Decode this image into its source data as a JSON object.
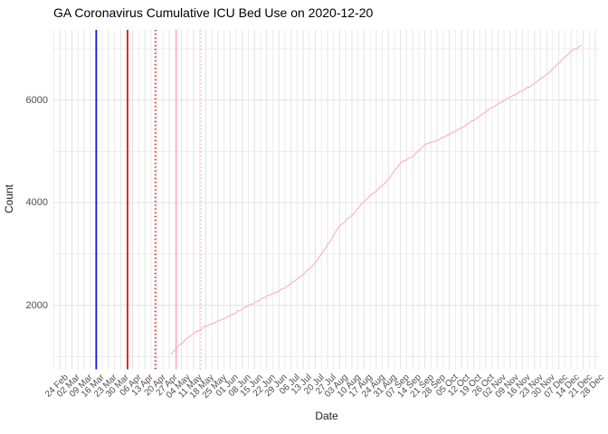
{
  "page": {
    "background": "#ffffff"
  },
  "chart_data": {
    "type": "line",
    "title": "GA Coronavirus Cumulative ICU Bed Use on 2020-12-20",
    "xlabel": "Date",
    "ylabel": "Count",
    "x_axis": {
      "start_date": "2020-02-24",
      "end_date": "2020-12-28",
      "tick_interval_days": 7,
      "tick_labels": [
        "24 Feb",
        "02 Mar",
        "09 Mar",
        "16 Mar",
        "23 Mar",
        "30 Mar",
        "06 Apr",
        "13 Apr",
        "20 Apr",
        "27 Apr",
        "04 May",
        "11 May",
        "18 May",
        "25 May",
        "01 Jun",
        "08 Jun",
        "15 Jun",
        "22 Jun",
        "29 Jun",
        "06 Jul",
        "13 Jul",
        "20 Jul",
        "27 Jul",
        "03 Aug",
        "10 Aug",
        "17 Aug",
        "24 Aug",
        "31 Aug",
        "07 Sep",
        "14 Sep",
        "21 Sep",
        "28 Sep",
        "05 Oct",
        "12 Oct",
        "19 Oct",
        "26 Oct",
        "02 Nov",
        "09 Nov",
        "16 Nov",
        "23 Nov",
        "30 Nov",
        "07 Dec",
        "14 Dec",
        "21 Dec",
        "28 Dec"
      ]
    },
    "y_axis": {
      "major_ticks": [
        2000,
        4000,
        6000
      ],
      "minor_ticks": [
        1000,
        3000,
        5000,
        7000
      ],
      "ylim": [
        750,
        7370
      ]
    },
    "grid": {
      "on": true,
      "major_color": "#e2e2e2",
      "minor_color": "#ececec"
    },
    "series": [
      {
        "name": "cumulative-icu-bed-use",
        "color": "#f9b4c4",
        "points": [
          [
            "2020-04-28",
            1050
          ],
          [
            "2020-05-04",
            1260
          ],
          [
            "2020-05-11",
            1450
          ],
          [
            "2020-05-18",
            1590
          ],
          [
            "2020-05-25",
            1690
          ],
          [
            "2020-06-01",
            1800
          ],
          [
            "2020-06-08",
            1930
          ],
          [
            "2020-06-15",
            2050
          ],
          [
            "2020-06-22",
            2180
          ],
          [
            "2020-06-29",
            2270
          ],
          [
            "2020-07-06",
            2420
          ],
          [
            "2020-07-13",
            2600
          ],
          [
            "2020-07-20",
            2820
          ],
          [
            "2020-07-27",
            3170
          ],
          [
            "2020-08-03",
            3560
          ],
          [
            "2020-08-10",
            3740
          ],
          [
            "2020-08-17",
            4030
          ],
          [
            "2020-08-24",
            4230
          ],
          [
            "2020-08-31",
            4450
          ],
          [
            "2020-09-07",
            4780
          ],
          [
            "2020-09-14",
            4900
          ],
          [
            "2020-09-21",
            5130
          ],
          [
            "2020-09-28",
            5220
          ],
          [
            "2020-10-05",
            5330
          ],
          [
            "2020-10-12",
            5460
          ],
          [
            "2020-10-19",
            5610
          ],
          [
            "2020-10-26",
            5780
          ],
          [
            "2020-11-02",
            5920
          ],
          [
            "2020-11-09",
            6060
          ],
          [
            "2020-11-16",
            6180
          ],
          [
            "2020-11-23",
            6320
          ],
          [
            "2020-11-30",
            6490
          ],
          [
            "2020-12-07",
            6730
          ],
          [
            "2020-12-14",
            6950
          ],
          [
            "2020-12-20",
            7070
          ]
        ]
      }
    ],
    "vlines": [
      {
        "date": "2020-03-16",
        "color": "#1515e0",
        "style": "solid"
      },
      {
        "date": "2020-04-03",
        "color": "#ee1111",
        "style": "solid"
      },
      {
        "date": "2020-04-19",
        "color": "#ee1111",
        "style": "dotted"
      },
      {
        "date": "2020-05-01",
        "color": "#ffb6c1",
        "style": "solid"
      },
      {
        "date": "2020-05-15",
        "color": "#ffb6c1",
        "style": "dotted"
      }
    ],
    "legend": {
      "shown": false
    }
  }
}
